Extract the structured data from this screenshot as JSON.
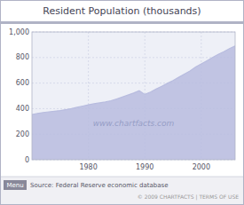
{
  "chart_data": {
    "type": "area",
    "title": "Resident Population (thousands)",
    "x": [
      1970,
      1971,
      1972,
      1973,
      1974,
      1975,
      1976,
      1977,
      1978,
      1979,
      1980,
      1981,
      1982,
      1983,
      1984,
      1985,
      1986,
      1987,
      1988,
      1989,
      1990,
      1991,
      1992,
      1993,
      1994,
      1995,
      1996,
      1997,
      1998,
      1999,
      2000,
      2001,
      2002,
      2003,
      2004,
      2005,
      2006
    ],
    "values": [
      354,
      362,
      370,
      375,
      380,
      385,
      392,
      400,
      410,
      420,
      430,
      438,
      445,
      452,
      462,
      475,
      490,
      506,
      522,
      540,
      511,
      530,
      553,
      575,
      598,
      620,
      645,
      670,
      695,
      725,
      750,
      775,
      800,
      825,
      845,
      870,
      890
    ],
    "color": "#b8bcdf",
    "xlim": [
      1970,
      2006
    ],
    "xticks": [
      1980,
      1990,
      2000
    ],
    "ylim": [
      0,
      1000
    ],
    "yticks": [
      0,
      200,
      400,
      600,
      800,
      {
        "value": 1000,
        "label": "1,000"
      }
    ],
    "grid": true,
    "annotations": [
      "www.chartfacts.com",
      "Menu",
      "Source: Federal Reserve economic database",
      "© 2009 CHARTFACTS | TERMS OF USE"
    ]
  }
}
